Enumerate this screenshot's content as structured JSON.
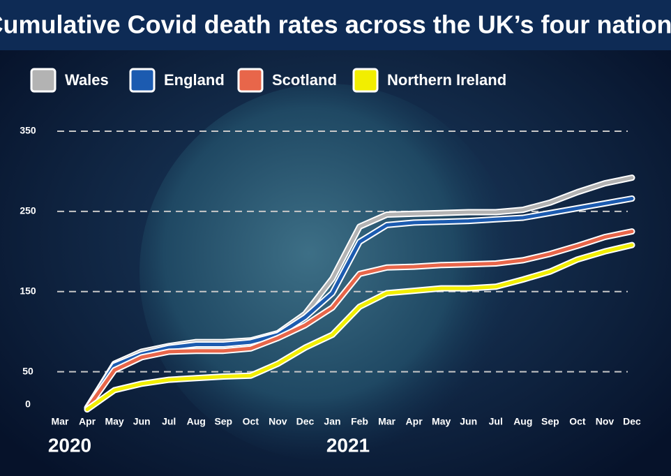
{
  "chart_data": {
    "type": "line",
    "title": "Cumulative Covid death rates across the UK’s four nations",
    "categories": [
      "Mar",
      "Apr",
      "May",
      "Jun",
      "Jul",
      "Aug",
      "Sep",
      "Oct",
      "Nov",
      "Dec",
      "Jan",
      "Feb",
      "Mar",
      "Apr",
      "May",
      "Jun",
      "Jul",
      "Aug",
      "Sep",
      "Oct",
      "Nov",
      "Dec"
    ],
    "years": [
      "2020",
      "2021"
    ],
    "ylim": [
      0,
      350
    ],
    "yticks": [
      0,
      50,
      150,
      250,
      350
    ],
    "grid": true,
    "series": [
      {
        "name": "Wales",
        "color": "#b3b3b3",
        "values": [
          null,
          5,
          60,
          75,
          82,
          87,
          87,
          89,
          98,
          122,
          166,
          231,
          246,
          247,
          248,
          249,
          249,
          252,
          261,
          274,
          285,
          292
        ]
      },
      {
        "name": "England",
        "color": "#1c5bb0",
        "values": [
          null,
          5,
          58,
          72,
          80,
          84,
          84,
          87,
          96,
          118,
          148,
          212,
          233,
          236,
          237,
          238,
          240,
          242,
          248,
          254,
          260,
          266
        ]
      },
      {
        "name": "Scotland",
        "color": "#e8664a",
        "values": [
          null,
          4,
          52,
          68,
          75,
          76,
          76,
          79,
          92,
          108,
          130,
          172,
          180,
          181,
          183,
          184,
          185,
          189,
          197,
          207,
          218,
          225
        ]
      },
      {
        "name": "Northern Ireland",
        "color": "#f2ee00",
        "values": [
          null,
          3,
          27,
          35,
          40,
          42,
          44,
          45,
          60,
          80,
          96,
          131,
          148,
          151,
          154,
          154,
          156,
          165,
          175,
          190,
          200,
          208
        ]
      }
    ]
  }
}
